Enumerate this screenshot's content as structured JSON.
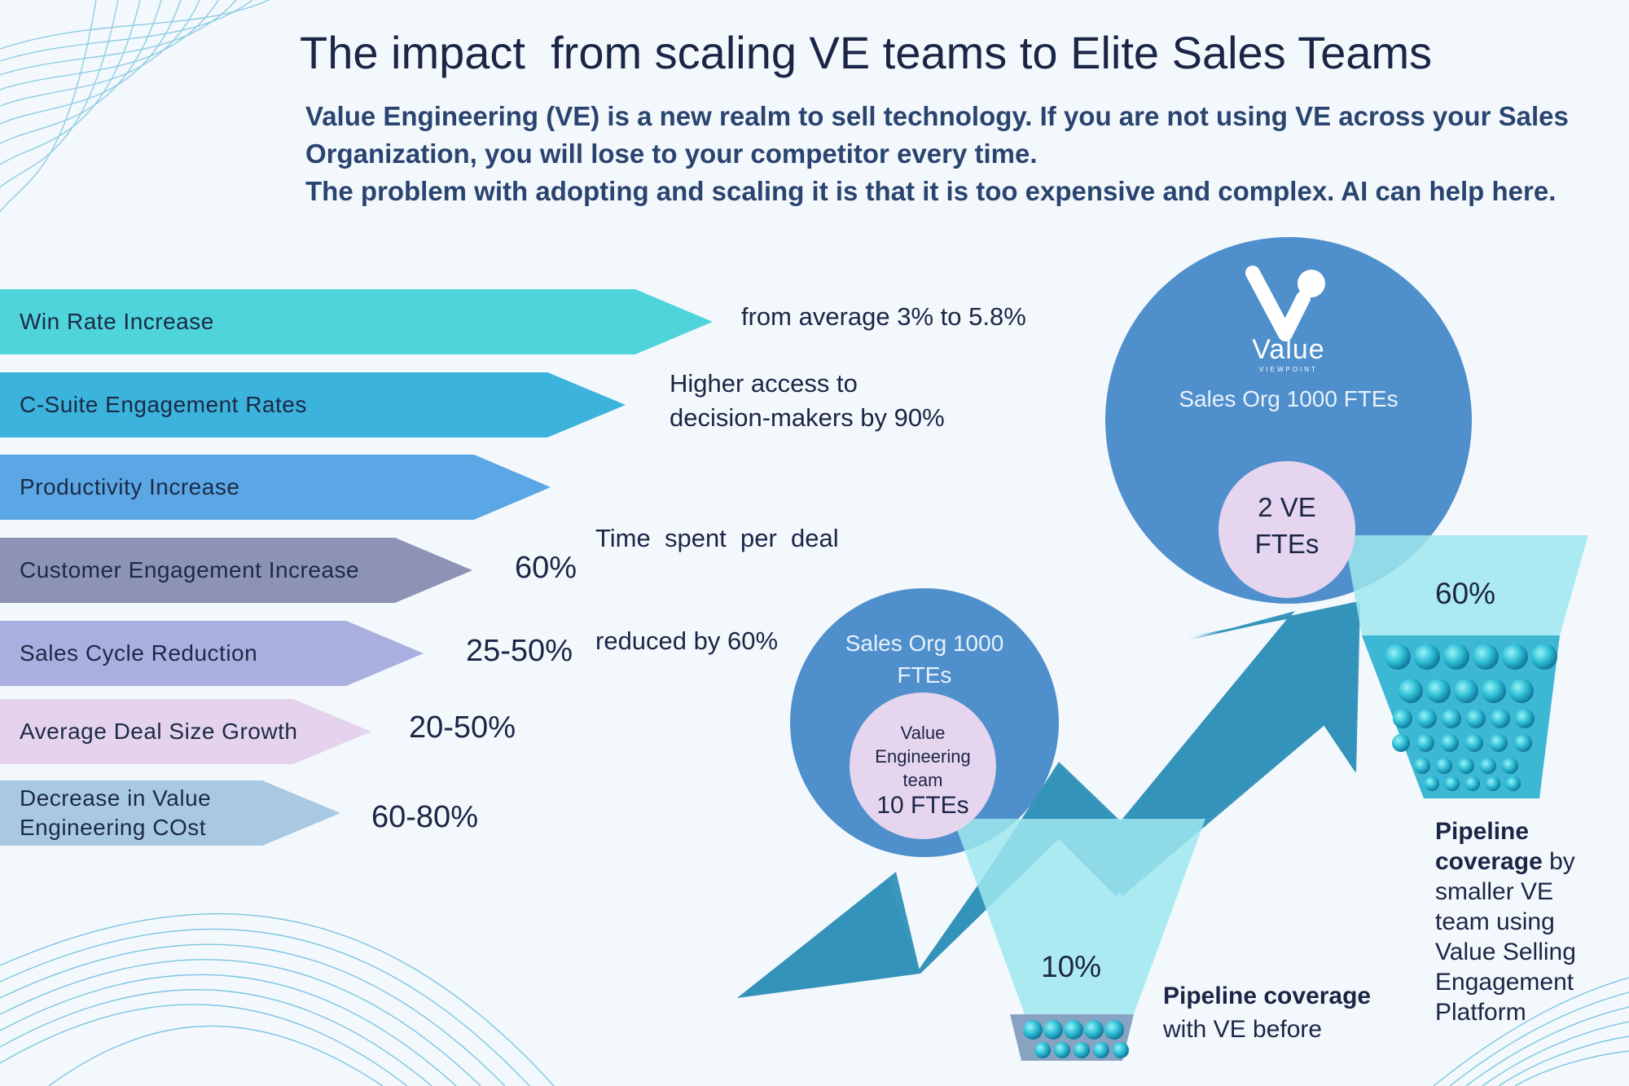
{
  "title": "The impact  from scaling VE teams to Elite Sales Teams",
  "intro": {
    "line1": "Value Engineering (VE) is a new realm to sell technology. If you are not using VE across your Sales Organization, you will lose to your competitor every time.",
    "line2": "The problem with adopting and scaling it is that it is too expensive and complex. AI can help here."
  },
  "metrics": [
    {
      "label": "Win Rate Increase",
      "value": "from average 3% to 5.8%",
      "color": "#4fd4dc"
    },
    {
      "label": "C-Suite Engagement Rates",
      "value": "Higher access to decision-makers by 90%",
      "color": "#3bb3dc"
    },
    {
      "label": "Productivity Increase",
      "value": "Time spent per deal reduced by 60%",
      "color": "#5ba7e6"
    },
    {
      "label": "Customer Engagement Increase",
      "value": "60%",
      "color": "#8d93b4"
    },
    {
      "label": "Sales Cycle Reduction",
      "value": "25-50%",
      "color": "#a9b0e0"
    },
    {
      "label": "Average Deal Size Growth",
      "value": "20-50%",
      "color": "#e5d3ed"
    },
    {
      "label": "Decrease in Value Engineering COst",
      "value": "60-80%",
      "color": "#a9c9e3"
    }
  ],
  "metric_labels": {
    "l6a": "Decrease in Value",
    "l6b": "Engineering COst",
    "v1a": "Higher access to",
    "v1b": "decision-makers by 90%",
    "v2a": "Time  spent  per  deal",
    "v2b": "reduced by 60%"
  },
  "before": {
    "org_label": "Sales Org 1000 FTEs",
    "team_label": "Value Engineering team",
    "team_size": "10 FTEs",
    "coverage_pct": "10%",
    "caption_bold": "Pipeline coverage",
    "caption_rest": " with VE before"
  },
  "after": {
    "logo_text": "Value",
    "logo_sub": "VIEWPOINT",
    "org_label": "Sales Org 1000 FTEs",
    "team_size": "2 VE FTEs",
    "coverage_pct": "60%",
    "caption_bold": "Pipeline coverage",
    "caption_rest": " by smaller VE team using Value Selling Engagement Platform"
  },
  "colors": {
    "circle_blue": "#4f8fcb",
    "pink": "#e6d5ee",
    "funnel_top": "#9fe7ee",
    "funnel_body": "#3cb8d4",
    "growth_arrow": "#3493ba"
  }
}
